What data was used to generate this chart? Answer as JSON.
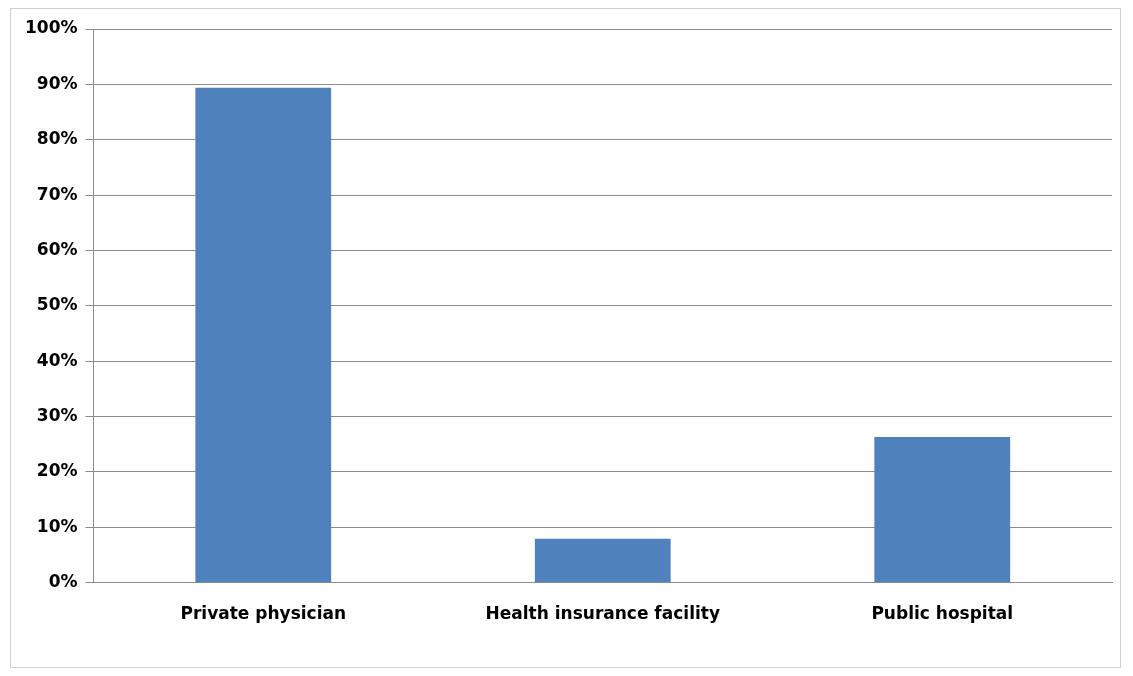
{
  "chart_data": {
    "type": "bar",
    "categories": [
      "Private physician",
      "Health insurance facility",
      "Public hospital"
    ],
    "values": [
      89.4,
      7.9,
      26.3
    ],
    "color": "#4f81bd",
    "ylim": [
      0,
      100
    ],
    "yticks": [
      {
        "value": 0,
        "label": "0%"
      },
      {
        "value": 10,
        "label": "10%"
      },
      {
        "value": 20,
        "label": "20%"
      },
      {
        "value": 30,
        "label": "30%"
      },
      {
        "value": 40,
        "label": "40%"
      },
      {
        "value": 50,
        "label": "50%"
      },
      {
        "value": 60,
        "label": "60%"
      },
      {
        "value": 70,
        "label": "70%"
      },
      {
        "value": 80,
        "label": "80%"
      },
      {
        "value": 90,
        "label": "90%"
      },
      {
        "value": 100,
        "label": "100%"
      }
    ],
    "grid": "y",
    "legend": false
  }
}
